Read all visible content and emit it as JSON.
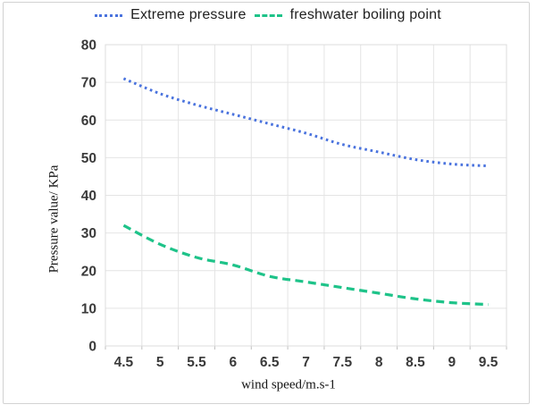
{
  "frame": {
    "background": "#ffffff",
    "border_color": "#d2d2d2"
  },
  "legend": {
    "position": "top",
    "items": [
      {
        "label": "Extreme pressure",
        "color": "#4a73de",
        "line_style": "dotted"
      },
      {
        "label": "freshwater boiling point",
        "color": "#1ec389",
        "line_style": "dashed"
      }
    ]
  },
  "chart_data": {
    "type": "line",
    "title": "",
    "xlabel": "wind speed/m.s-1",
    "ylabel": "Pressure value/ KPa",
    "categories": [
      4.5,
      5,
      5.5,
      6,
      6.5,
      7,
      7.5,
      8,
      8.5,
      9,
      9.5
    ],
    "series": [
      {
        "name": "Extreme pressure",
        "color": "#4a73de",
        "line_style": "dotted",
        "values": [
          71,
          67,
          64,
          61.5,
          59,
          56.5,
          53.5,
          51.5,
          49.5,
          48.3,
          47.8
        ]
      },
      {
        "name": "freshwater boiling point",
        "color": "#1ec389",
        "line_style": "dashed",
        "values": [
          32,
          27,
          23.5,
          21.5,
          18.5,
          17,
          15.5,
          14,
          12.5,
          11.5,
          11
        ]
      }
    ],
    "ylim": [
      0,
      80
    ],
    "yticks": [
      0,
      10,
      20,
      30,
      40,
      50,
      60,
      70,
      80
    ],
    "grid": true,
    "smooth_lines": true,
    "colors": {
      "gridline": "#e4e4e4",
      "plot_border": "#dcdcdc",
      "axis_line": "#c0c0c0",
      "tick_text": "#3a3a3a"
    }
  }
}
